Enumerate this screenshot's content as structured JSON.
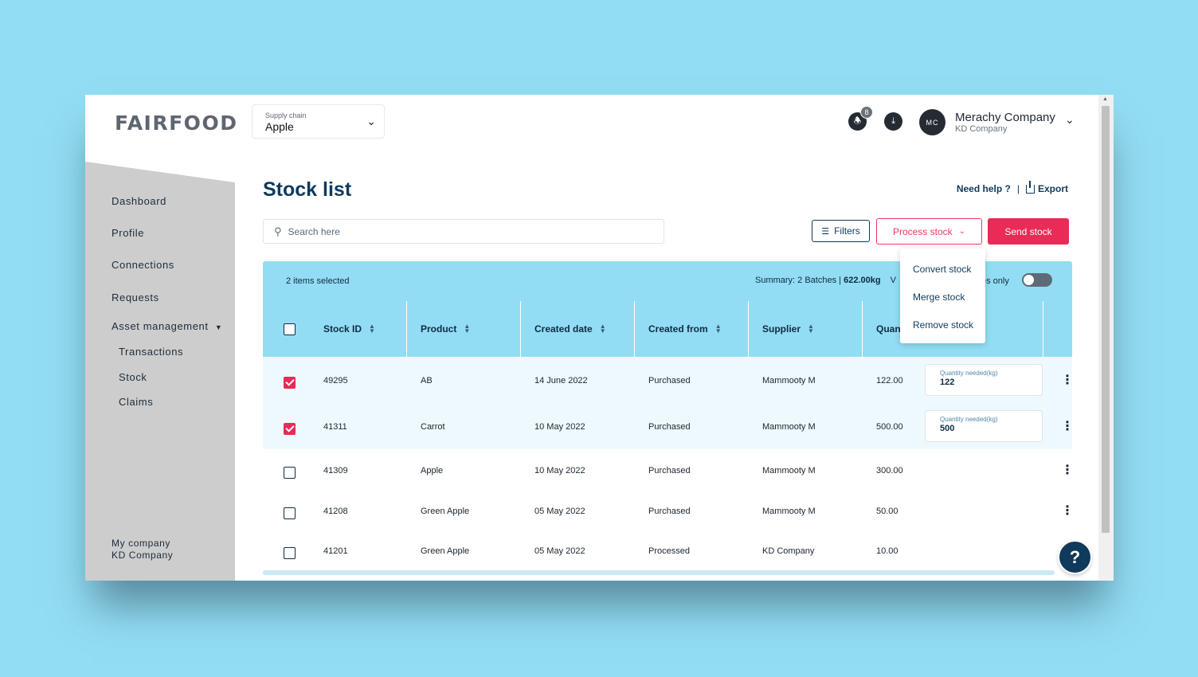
{
  "logo": "FAIRFOOD",
  "supply_chain": {
    "label": "Supply chain",
    "value": "Apple"
  },
  "notifications": {
    "count": "8"
  },
  "user": {
    "initials": "MC",
    "company": "Merachy Company",
    "sub": "KD Company"
  },
  "sidebar": {
    "items": [
      {
        "label": "Dashboard"
      },
      {
        "label": "Profile"
      },
      {
        "label": "Connections"
      },
      {
        "label": "Requests"
      },
      {
        "label": "Asset management"
      }
    ],
    "sub_items": [
      {
        "label": "Transactions"
      },
      {
        "label": "Stock"
      },
      {
        "label": "Claims"
      }
    ],
    "footer": {
      "label": "My company",
      "company": "KD Company"
    }
  },
  "page": {
    "title": "Stock list",
    "help": "Need help ?",
    "separator": "|",
    "export": "Export"
  },
  "search": {
    "placeholder": "Search here"
  },
  "toolbar": {
    "filters": "Filters",
    "process": "Process stock",
    "send": "Send stock"
  },
  "process_menu": {
    "options": [
      "Convert stock",
      "Merge stock",
      "Remove stock"
    ]
  },
  "summary": {
    "selected": "2 items selected",
    "prefix": "Summary: 2 Batches | ",
    "weight": "622.00kg",
    "extra": "V",
    "only_label": "es only"
  },
  "table": {
    "headers": [
      "Stock ID",
      "Product",
      "Created date",
      "Created from",
      "Supplier",
      "Quan"
    ],
    "rows": [
      {
        "id": "49295",
        "product": "AB",
        "date": "14 June 2022",
        "from": "Purchased",
        "supplier": "Mammooty M",
        "qty": "122.00",
        "checked": true,
        "needed_label": "Quantity needed(kg)",
        "needed": "122"
      },
      {
        "id": "41311",
        "product": "Carrot",
        "date": "10 May 2022",
        "from": "Purchased",
        "supplier": "Mammooty M",
        "qty": "500.00",
        "checked": true,
        "needed_label": "Quantity needed(kg)",
        "needed": "500"
      },
      {
        "id": "41309",
        "product": "Apple",
        "date": "10 May 2022",
        "from": "Purchased",
        "supplier": "Mammooty M",
        "qty": "300.00",
        "checked": false
      },
      {
        "id": "41208",
        "product": "Green Apple",
        "date": "05 May 2022",
        "from": "Purchased",
        "supplier": "Mammooty M",
        "qty": "50.00",
        "checked": false
      },
      {
        "id": "41201",
        "product": "Green Apple",
        "date": "05 May 2022",
        "from": "Processed",
        "supplier": "KD Company",
        "qty": "10.00",
        "checked": false
      }
    ]
  },
  "help_fab": "?",
  "colors": {
    "background": "#92ddf3",
    "accent": "#ea2a57",
    "navy": "#0f3a5c"
  }
}
